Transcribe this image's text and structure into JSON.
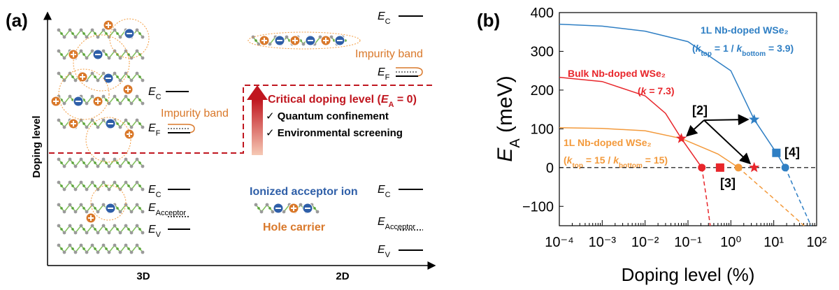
{
  "panel_a": {
    "label": "(a)",
    "y_axis": "Doping level",
    "x_labels": [
      "3D",
      "2D"
    ],
    "d3_high": {
      "ec": [
        "E",
        "C"
      ],
      "impurity": "Impurity band",
      "ef": [
        "E",
        "F"
      ]
    },
    "d3_low": {
      "ec": [
        "E",
        "C"
      ],
      "ea": [
        "E",
        "Acceptor"
      ],
      "ev": [
        "E",
        "V"
      ]
    },
    "d2_high": {
      "ec": [
        "E",
        "C"
      ],
      "impurity": "Impurity band",
      "ef": [
        "E",
        "F"
      ]
    },
    "d2_low": {
      "ec": [
        "E",
        "C"
      ],
      "ea": [
        "E",
        "Acceptor"
      ],
      "ev": [
        "E",
        "V"
      ],
      "ion": "Ionized acceptor ion",
      "hole": "Hole carrier"
    },
    "critical": [
      "Critical doping level (",
      "E",
      "A",
      " = 0)"
    ],
    "checks": [
      "✓ Quantum confinement",
      "✓ Environmental screening"
    ]
  },
  "chart_data": {
    "type": "line",
    "panel": "(b)",
    "log_x": true,
    "minor_ticks": true,
    "xlim": [
      0.0001,
      100
    ],
    "ylim": [
      -150,
      400
    ],
    "xticks": [
      {
        "value": 0.0001,
        "label": "10⁻⁴"
      },
      {
        "value": 0.001,
        "label": "10⁻³"
      },
      {
        "value": 0.01,
        "label": "10⁻²"
      },
      {
        "value": 0.1,
        "label": "10⁻¹"
      },
      {
        "value": 1,
        "label": "10⁰"
      },
      {
        "value": 10,
        "label": "10¹"
      },
      {
        "value": 100,
        "label": "10²"
      }
    ],
    "yticks": [
      {
        "value": -100,
        "label": "−100"
      },
      0,
      100,
      200,
      300,
      400
    ],
    "xlabel": "Doping level (%)",
    "ylabel": [
      "E",
      "A",
      " (meV)"
    ],
    "hline": 0,
    "series": [
      {
        "name": "1L Nb-doped WSe₂",
        "note": [
          "(",
          "k",
          "top",
          " = 1 / ",
          "k",
          "bottom",
          " = 3.9)"
        ],
        "color": "#2f7fc4",
        "x": [
          0.0001,
          0.001,
          0.01,
          0.1,
          1,
          3.5,
          11.5,
          18.6
        ],
        "values": [
          370,
          365,
          352,
          325,
          250,
          124,
          38,
          0
        ]
      },
      {
        "color": "#2f7fc4",
        "style": "dashed",
        "x": [
          18.6,
          35,
          74
        ],
        "values": [
          0,
          -70,
          -150
        ]
      },
      {
        "name": "Bulk Nb-doped WSe₂",
        "note": [
          "(",
          "k",
          " = 7.3)"
        ],
        "color": "#e8262b",
        "x": [
          0.0001,
          0.001,
          0.01,
          0.03,
          0.07,
          0.21
        ],
        "values": [
          233,
          222,
          185,
          140,
          75,
          0
        ]
      },
      {
        "color": "#e8262b",
        "style": "dashed",
        "x": [
          0.21,
          0.27,
          0.33
        ],
        "values": [
          0,
          -80,
          -150
        ]
      },
      {
        "name": "1L Nb-doped WSe₂",
        "note": [
          "(",
          "k",
          "top",
          " = 15 / ",
          "k",
          "bottom",
          " = 15)"
        ],
        "color": "#f39a3c",
        "x": [
          0.0001,
          0.001,
          0.01,
          0.07,
          0.5,
          1.5
        ],
        "values": [
          103,
          101,
          95,
          75,
          35,
          0
        ]
      },
      {
        "color": "#f39a3c",
        "style": "dashed",
        "x": [
          1.5,
          10,
          51
        ],
        "values": [
          0,
          -80,
          -150
        ]
      },
      {
        "marker": "star",
        "color": "#e8262b",
        "x": [
          0.07,
          3.5
        ],
        "values": [
          75,
          0
        ]
      },
      {
        "marker": "star",
        "color": "#2f7fc4",
        "x": [
          3.5
        ],
        "values": [
          124
        ]
      },
      {
        "marker": "square",
        "color": "#e8262b",
        "x": [
          0.56
        ],
        "values": [
          0
        ]
      },
      {
        "marker": "square",
        "color": "#2f7fc4",
        "x": [
          11.5
        ],
        "values": [
          38
        ]
      },
      {
        "marker": "circle",
        "color": "#e8262b",
        "x": [
          0.21
        ],
        "values": [
          0
        ]
      },
      {
        "marker": "circle",
        "color": "#f39a3c",
        "x": [
          1.5
        ],
        "values": [
          0
        ]
      },
      {
        "marker": "circle",
        "color": "#2f7fc4",
        "x": [
          18.6
        ],
        "values": [
          0
        ]
      }
    ],
    "refs": [
      "[2]",
      "[3]",
      "[4]"
    ]
  }
}
